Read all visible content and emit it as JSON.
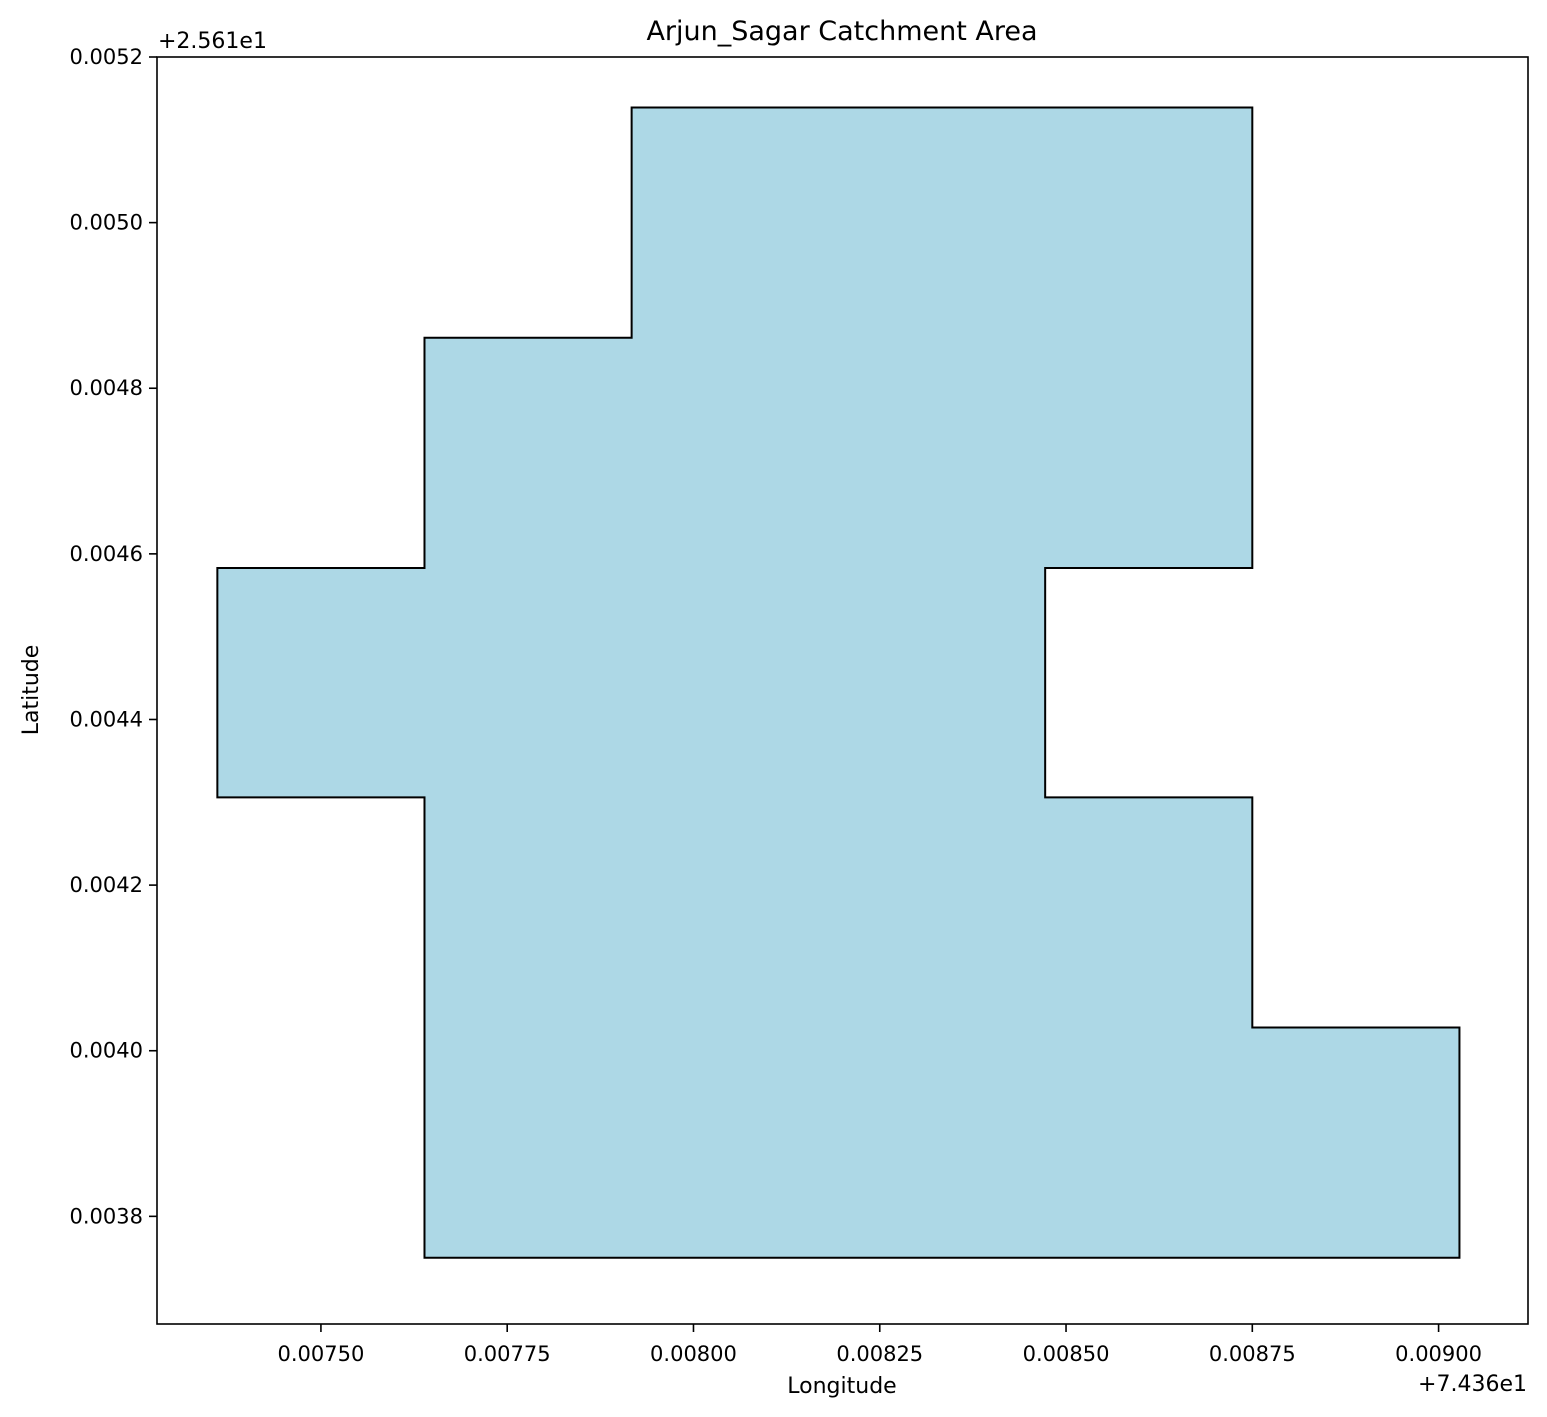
{
  "chart_data": {
    "type": "area",
    "title": "Arjun_Sagar Catchment Area",
    "xlabel": "Longitude",
    "ylabel": "Latitude",
    "x_offset_text": "+7.436e1",
    "y_offset_text": "+2.561e1",
    "xlim": [
      0.00728,
      0.00912
    ],
    "ylim": [
      0.00367,
      0.0052
    ],
    "x_ticks": [
      {
        "value": 0.0075,
        "label": "0.00750"
      },
      {
        "value": 0.00775,
        "label": "0.00775"
      },
      {
        "value": 0.008,
        "label": "0.00800"
      },
      {
        "value": 0.00825,
        "label": "0.00825"
      },
      {
        "value": 0.0085,
        "label": "0.00850"
      },
      {
        "value": 0.00875,
        "label": "0.00875"
      },
      {
        "value": 0.009,
        "label": "0.00900"
      }
    ],
    "y_ticks": [
      {
        "value": 0.0038,
        "label": "0.0038"
      },
      {
        "value": 0.004,
        "label": "0.0040"
      },
      {
        "value": 0.0042,
        "label": "0.0042"
      },
      {
        "value": 0.0044,
        "label": "0.0044"
      },
      {
        "value": 0.0046,
        "label": "0.0046"
      },
      {
        "value": 0.0048,
        "label": "0.0048"
      },
      {
        "value": 0.005,
        "label": "0.0050"
      },
      {
        "value": 0.0052,
        "label": "0.0052"
      }
    ],
    "polygon": {
      "fill": "#add8e6",
      "edge": "#000000",
      "points": [
        [
          0.007639,
          0.00375
        ],
        [
          0.009028,
          0.00375
        ],
        [
          0.009028,
          0.004028
        ],
        [
          0.00875,
          0.004028
        ],
        [
          0.00875,
          0.004306
        ],
        [
          0.008472,
          0.004306
        ],
        [
          0.008472,
          0.004583
        ],
        [
          0.00875,
          0.004583
        ],
        [
          0.00875,
          0.005139
        ],
        [
          0.007917,
          0.005139
        ],
        [
          0.007917,
          0.004861
        ],
        [
          0.007639,
          0.004861
        ],
        [
          0.007639,
          0.004583
        ],
        [
          0.007361,
          0.004583
        ],
        [
          0.007361,
          0.004306
        ],
        [
          0.007639,
          0.004306
        ]
      ]
    },
    "grid": false,
    "legend": "none"
  }
}
